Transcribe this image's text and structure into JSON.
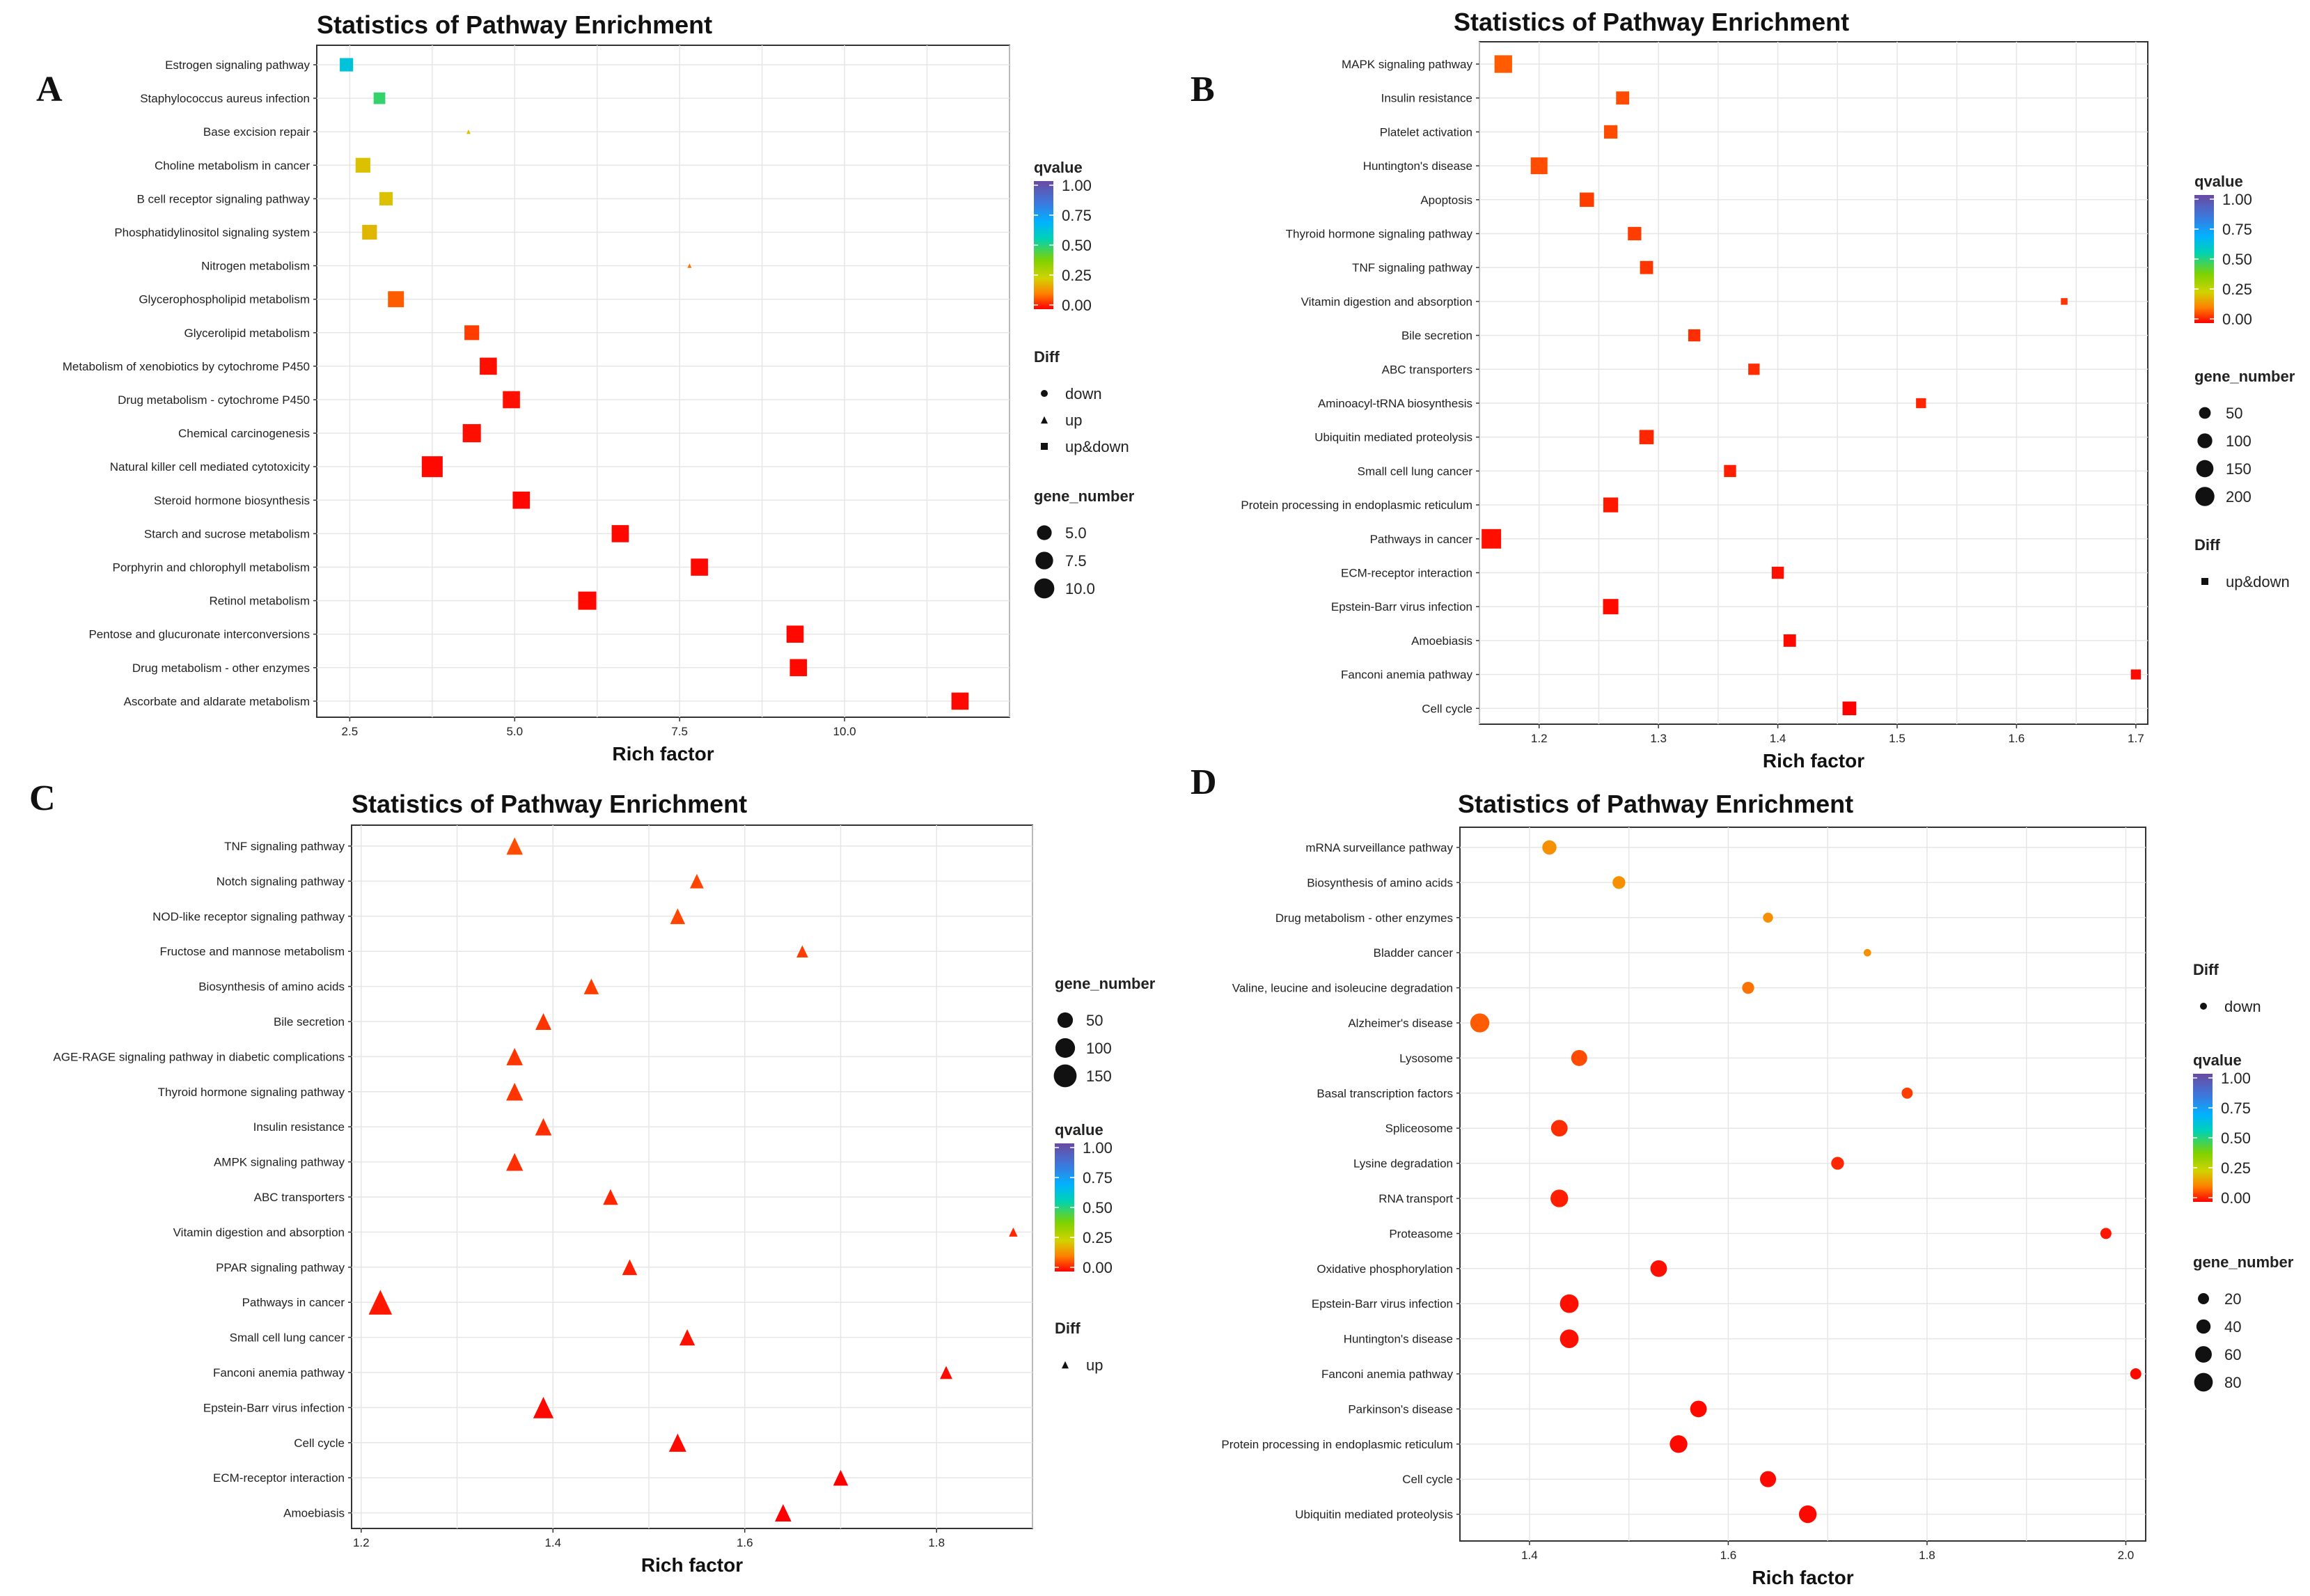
{
  "colors": {
    "q_scale": [
      "#ff0000",
      "#ff7f00",
      "#d2d200",
      "#7fd200",
      "#00d2b4",
      "#00b2ff",
      "#6a4aa0"
    ],
    "grid": "#e6e6e6",
    "panel_border": "#333333"
  },
  "chart_data": [
    {
      "panel": "A",
      "type": "scatter",
      "title": "Statistics of Pathway Enrichment",
      "xlabel": "Rich factor",
      "xlim": [
        2.0,
        12.5
      ],
      "xticks": [
        2.5,
        5.0,
        7.5,
        10.0
      ],
      "xtick_labels": [
        "2.5",
        "5.0",
        "7.5",
        "10.0"
      ],
      "legend": {
        "qvalue_title": "qvalue",
        "qvalue_labels": [
          "1.00",
          "0.75",
          "0.50",
          "0.25",
          "0.00"
        ],
        "diff_title": "Diff",
        "diff_items": [
          {
            "label": "down",
            "shape": "circle"
          },
          {
            "label": "up",
            "shape": "triangle"
          },
          {
            "label": "up&down",
            "shape": "square"
          }
        ],
        "gene_title": "gene_number",
        "gene_items": [
          {
            "label": "5.0",
            "value": 5
          },
          {
            "label": "7.5",
            "value": 7.5
          },
          {
            "label": "10.0",
            "value": 10
          }
        ]
      },
      "size_ref": {
        "min": 1,
        "max": 11
      },
      "points": [
        {
          "pathway": "Estrogen signaling pathway",
          "x": 2.45,
          "q": 0.75,
          "genes": 4,
          "shape": "square"
        },
        {
          "pathway": "Staphylococcus aureus infection",
          "x": 2.95,
          "q": 0.6,
          "genes": 3,
          "shape": "square"
        },
        {
          "pathway": "Base excision repair",
          "x": 4.3,
          "q": 0.3,
          "genes": 1,
          "shape": "triangle"
        },
        {
          "pathway": "Choline metabolism in cancer",
          "x": 2.7,
          "q": 0.3,
          "genes": 5,
          "shape": "square"
        },
        {
          "pathway": "B cell receptor signaling pathway",
          "x": 3.05,
          "q": 0.3,
          "genes": 4,
          "shape": "square"
        },
        {
          "pathway": "Phosphatidylinositol signaling system",
          "x": 2.8,
          "q": 0.28,
          "genes": 5,
          "shape": "square"
        },
        {
          "pathway": "Nitrogen metabolism",
          "x": 7.65,
          "q": 0.15,
          "genes": 1,
          "shape": "triangle"
        },
        {
          "pathway": "Glycerophospholipid metabolism",
          "x": 3.2,
          "q": 0.12,
          "genes": 6,
          "shape": "square"
        },
        {
          "pathway": "Glycerolipid metabolism",
          "x": 4.35,
          "q": 0.08,
          "genes": 5,
          "shape": "square"
        },
        {
          "pathway": "Metabolism of xenobiotics by cytochrome P450",
          "x": 4.6,
          "q": 0.02,
          "genes": 7,
          "shape": "square"
        },
        {
          "pathway": "Drug metabolism - cytochrome P450",
          "x": 4.95,
          "q": 0.02,
          "genes": 7,
          "shape": "square"
        },
        {
          "pathway": "Chemical carcinogenesis",
          "x": 4.35,
          "q": 0.02,
          "genes": 8,
          "shape": "square"
        },
        {
          "pathway": "Natural killer cell mediated cytotoxicity",
          "x": 3.75,
          "q": 0.01,
          "genes": 11,
          "shape": "square"
        },
        {
          "pathway": "Steroid hormone biosynthesis",
          "x": 5.1,
          "q": 0.01,
          "genes": 7,
          "shape": "square"
        },
        {
          "pathway": "Starch and sucrose metabolism",
          "x": 6.6,
          "q": 0.01,
          "genes": 7,
          "shape": "square"
        },
        {
          "pathway": "Porphyrin and chlorophyll metabolism",
          "x": 7.8,
          "q": 0.01,
          "genes": 7,
          "shape": "square"
        },
        {
          "pathway": "Retinol metabolism",
          "x": 6.1,
          "q": 0.01,
          "genes": 8,
          "shape": "square"
        },
        {
          "pathway": "Pentose and glucuronate interconversions",
          "x": 9.25,
          "q": 0.01,
          "genes": 7,
          "shape": "square"
        },
        {
          "pathway": "Drug metabolism - other enzymes",
          "x": 9.3,
          "q": 0.01,
          "genes": 7,
          "shape": "square"
        },
        {
          "pathway": "Ascorbate and aldarate metabolism",
          "x": 11.75,
          "q": 0.01,
          "genes": 7,
          "shape": "square"
        }
      ]
    },
    {
      "panel": "B",
      "type": "scatter",
      "title": "Statistics of Pathway Enrichment",
      "xlabel": "Rich factor",
      "xlim": [
        1.15,
        1.71
      ],
      "xticks": [
        1.2,
        1.3,
        1.4,
        1.5,
        1.6,
        1.7
      ],
      "xtick_labels": [
        "1.2",
        "1.3",
        "1.4",
        "1.5",
        "1.6",
        "1.7"
      ],
      "legend": {
        "qvalue_title": "qvalue",
        "qvalue_labels": [
          "1.00",
          "0.75",
          "0.50",
          "0.25",
          "0.00"
        ],
        "gene_title": "gene_number",
        "gene_items": [
          {
            "label": "50",
            "value": 50
          },
          {
            "label": "100",
            "value": 100
          },
          {
            "label": "150",
            "value": 150
          },
          {
            "label": "200",
            "value": 200
          }
        ],
        "diff_title": "Diff",
        "diff_items": [
          {
            "label": "up&down",
            "shape": "square"
          }
        ]
      },
      "size_ref": {
        "min": 5,
        "max": 210
      },
      "points": [
        {
          "pathway": "MAPK signaling pathway",
          "x": 1.17,
          "q": 0.12,
          "genes": 160,
          "shape": "square"
        },
        {
          "pathway": "Insulin resistance",
          "x": 1.27,
          "q": 0.1,
          "genes": 70,
          "shape": "square"
        },
        {
          "pathway": "Platelet activation",
          "x": 1.26,
          "q": 0.1,
          "genes": 75,
          "shape": "square"
        },
        {
          "pathway": "Huntington's disease",
          "x": 1.2,
          "q": 0.1,
          "genes": 140,
          "shape": "square"
        },
        {
          "pathway": "Apoptosis",
          "x": 1.24,
          "q": 0.08,
          "genes": 90,
          "shape": "square"
        },
        {
          "pathway": "Thyroid hormone signaling pathway",
          "x": 1.28,
          "q": 0.08,
          "genes": 75,
          "shape": "square"
        },
        {
          "pathway": "TNF signaling pathway",
          "x": 1.29,
          "q": 0.07,
          "genes": 70,
          "shape": "square"
        },
        {
          "pathway": "Vitamin digestion and absorption",
          "x": 1.64,
          "q": 0.07,
          "genes": 8,
          "shape": "square"
        },
        {
          "pathway": "Bile secretion",
          "x": 1.33,
          "q": 0.06,
          "genes": 55,
          "shape": "square"
        },
        {
          "pathway": "ABC transporters",
          "x": 1.38,
          "q": 0.06,
          "genes": 45,
          "shape": "square"
        },
        {
          "pathway": "Aminoacyl-tRNA biosynthesis",
          "x": 1.52,
          "q": 0.05,
          "genes": 30,
          "shape": "square"
        },
        {
          "pathway": "Ubiquitin mediated proteolysis",
          "x": 1.29,
          "q": 0.05,
          "genes": 90,
          "shape": "square"
        },
        {
          "pathway": "Small cell lung cancer",
          "x": 1.36,
          "q": 0.04,
          "genes": 55,
          "shape": "square"
        },
        {
          "pathway": "Protein processing in endoplasmic reticulum",
          "x": 1.26,
          "q": 0.03,
          "genes": 100,
          "shape": "square"
        },
        {
          "pathway": "Pathways in cancer",
          "x": 1.16,
          "q": 0.02,
          "genes": 210,
          "shape": "square"
        },
        {
          "pathway": "ECM-receptor interaction",
          "x": 1.4,
          "q": 0.02,
          "genes": 55,
          "shape": "square"
        },
        {
          "pathway": "Epstein-Barr virus infection",
          "x": 1.26,
          "q": 0.01,
          "genes": 110,
          "shape": "square"
        },
        {
          "pathway": "Amoebiasis",
          "x": 1.41,
          "q": 0.01,
          "genes": 60,
          "shape": "square"
        },
        {
          "pathway": "Fanconi anemia pathway",
          "x": 1.7,
          "q": 0.01,
          "genes": 30,
          "shape": "square"
        },
        {
          "pathway": "Cell cycle",
          "x": 1.46,
          "q": 0.0,
          "genes": 80,
          "shape": "square"
        }
      ]
    },
    {
      "panel": "C",
      "type": "scatter",
      "title": "Statistics of Pathway Enrichment",
      "xlabel": "Rich factor",
      "xlim": [
        1.19,
        1.9
      ],
      "xticks": [
        1.2,
        1.4,
        1.6,
        1.8
      ],
      "xtick_labels": [
        "1.2",
        "1.4",
        "1.6",
        "1.8"
      ],
      "legend": {
        "gene_title": "gene_number",
        "gene_items": [
          {
            "label": "50",
            "value": 50
          },
          {
            "label": "100",
            "value": 100
          },
          {
            "label": "150",
            "value": 150
          }
        ],
        "qvalue_title": "qvalue",
        "qvalue_labels": [
          "1.00",
          "0.75",
          "0.50",
          "0.25",
          "0.00"
        ],
        "diff_title": "Diff",
        "diff_items": [
          {
            "label": "up",
            "shape": "triangle"
          }
        ]
      },
      "size_ref": {
        "min": 5,
        "max": 165
      },
      "points": [
        {
          "pathway": "TNF signaling pathway",
          "x": 1.36,
          "q": 0.1,
          "genes": 60,
          "shape": "triangle"
        },
        {
          "pathway": "Notch signaling pathway",
          "x": 1.55,
          "q": 0.09,
          "genes": 35,
          "shape": "triangle"
        },
        {
          "pathway": "NOD-like receptor signaling pathway",
          "x": 1.53,
          "q": 0.09,
          "genes": 45,
          "shape": "triangle"
        },
        {
          "pathway": "Fructose and mannose metabolism",
          "x": 1.66,
          "q": 0.08,
          "genes": 20,
          "shape": "triangle"
        },
        {
          "pathway": "Biosynthesis of amino acids",
          "x": 1.44,
          "q": 0.08,
          "genes": 45,
          "shape": "triangle"
        },
        {
          "pathway": "Bile secretion",
          "x": 1.39,
          "q": 0.07,
          "genes": 55,
          "shape": "triangle"
        },
        {
          "pathway": "AGE-RAGE signaling pathway in diabetic complications",
          "x": 1.36,
          "q": 0.07,
          "genes": 60,
          "shape": "triangle"
        },
        {
          "pathway": "Thyroid hormone signaling pathway",
          "x": 1.36,
          "q": 0.07,
          "genes": 65,
          "shape": "triangle"
        },
        {
          "pathway": "Insulin resistance",
          "x": 1.39,
          "q": 0.06,
          "genes": 60,
          "shape": "triangle"
        },
        {
          "pathway": "AMPK signaling pathway",
          "x": 1.36,
          "q": 0.06,
          "genes": 65,
          "shape": "triangle"
        },
        {
          "pathway": "ABC transporters",
          "x": 1.46,
          "q": 0.05,
          "genes": 45,
          "shape": "triangle"
        },
        {
          "pathway": "Vitamin digestion and absorption",
          "x": 1.88,
          "q": 0.05,
          "genes": 8,
          "shape": "triangle"
        },
        {
          "pathway": "PPAR signaling pathway",
          "x": 1.48,
          "q": 0.04,
          "genes": 45,
          "shape": "triangle"
        },
        {
          "pathway": "Pathways in cancer",
          "x": 1.22,
          "q": 0.03,
          "genes": 160,
          "shape": "triangle"
        },
        {
          "pathway": "Small cell lung cancer",
          "x": 1.54,
          "q": 0.02,
          "genes": 50,
          "shape": "triangle"
        },
        {
          "pathway": "Fanconi anemia pathway",
          "x": 1.81,
          "q": 0.01,
          "genes": 25,
          "shape": "triangle"
        },
        {
          "pathway": "Epstein-Barr virus infection",
          "x": 1.39,
          "q": 0.01,
          "genes": 110,
          "shape": "triangle"
        },
        {
          "pathway": "Cell cycle",
          "x": 1.53,
          "q": 0.01,
          "genes": 70,
          "shape": "triangle"
        },
        {
          "pathway": "ECM-receptor interaction",
          "x": 1.7,
          "q": 0.0,
          "genes": 45,
          "shape": "triangle"
        },
        {
          "pathway": "Amoebiasis",
          "x": 1.64,
          "q": 0.0,
          "genes": 60,
          "shape": "triangle"
        }
      ]
    },
    {
      "panel": "D",
      "type": "scatter",
      "title": "Statistics of Pathway Enrichment",
      "xlabel": "Rich factor",
      "xlim": [
        1.33,
        2.02
      ],
      "xticks": [
        1.4,
        1.6,
        1.8,
        2.0
      ],
      "xtick_labels": [
        "1.4",
        "1.6",
        "1.8",
        "2.0"
      ],
      "legend": {
        "diff_title": "Diff",
        "diff_items": [
          {
            "label": "down",
            "shape": "circle"
          }
        ],
        "qvalue_title": "qvalue",
        "qvalue_labels": [
          "1.00",
          "0.75",
          "0.50",
          "0.25",
          "0.00"
        ],
        "gene_title": "gene_number",
        "gene_items": [
          {
            "label": "20",
            "value": 20
          },
          {
            "label": "40",
            "value": 40
          },
          {
            "label": "60",
            "value": 60
          },
          {
            "label": "80",
            "value": 80
          }
        ]
      },
      "size_ref": {
        "min": 2,
        "max": 90
      },
      "points": [
        {
          "pathway": "mRNA surveillance pathway",
          "x": 1.42,
          "q": 0.2,
          "genes": 40,
          "shape": "circle"
        },
        {
          "pathway": "Biosynthesis of amino acids",
          "x": 1.49,
          "q": 0.2,
          "genes": 30,
          "shape": "circle"
        },
        {
          "pathway": "Drug metabolism - other enzymes",
          "x": 1.64,
          "q": 0.2,
          "genes": 15,
          "shape": "circle"
        },
        {
          "pathway": "Bladder cancer",
          "x": 1.74,
          "q": 0.2,
          "genes": 6,
          "shape": "circle"
        },
        {
          "pathway": "Valine, leucine and isoleucine degradation",
          "x": 1.62,
          "q": 0.15,
          "genes": 25,
          "shape": "circle"
        },
        {
          "pathway": "Alzheimer's disease",
          "x": 1.35,
          "q": 0.12,
          "genes": 85,
          "shape": "circle"
        },
        {
          "pathway": "Lysosome",
          "x": 1.45,
          "q": 0.1,
          "genes": 55,
          "shape": "circle"
        },
        {
          "pathway": "Basal transcription factors",
          "x": 1.78,
          "q": 0.08,
          "genes": 20,
          "shape": "circle"
        },
        {
          "pathway": "Spliceosome",
          "x": 1.43,
          "q": 0.06,
          "genes": 60,
          "shape": "circle"
        },
        {
          "pathway": "Lysine degradation",
          "x": 1.71,
          "q": 0.05,
          "genes": 30,
          "shape": "circle"
        },
        {
          "pathway": "RNA transport",
          "x": 1.43,
          "q": 0.04,
          "genes": 70,
          "shape": "circle"
        },
        {
          "pathway": "Proteasome",
          "x": 1.98,
          "q": 0.03,
          "genes": 20,
          "shape": "circle"
        },
        {
          "pathway": "Oxidative phosphorylation",
          "x": 1.53,
          "q": 0.02,
          "genes": 60,
          "shape": "circle"
        },
        {
          "pathway": "Epstein-Barr virus infection",
          "x": 1.44,
          "q": 0.02,
          "genes": 80,
          "shape": "circle"
        },
        {
          "pathway": "Huntington's disease",
          "x": 1.44,
          "q": 0.02,
          "genes": 80,
          "shape": "circle"
        },
        {
          "pathway": "Fanconi anemia pathway",
          "x": 2.01,
          "q": 0.01,
          "genes": 20,
          "shape": "circle"
        },
        {
          "pathway": "Parkinson's disease",
          "x": 1.57,
          "q": 0.01,
          "genes": 60,
          "shape": "circle"
        },
        {
          "pathway": "Protein processing in endoplasmic reticulum",
          "x": 1.55,
          "q": 0.01,
          "genes": 70,
          "shape": "circle"
        },
        {
          "pathway": "Cell cycle",
          "x": 1.64,
          "q": 0.01,
          "genes": 55,
          "shape": "circle"
        },
        {
          "pathway": "Ubiquitin mediated proteolysis",
          "x": 1.68,
          "q": 0.01,
          "genes": 70,
          "shape": "circle"
        }
      ]
    }
  ]
}
